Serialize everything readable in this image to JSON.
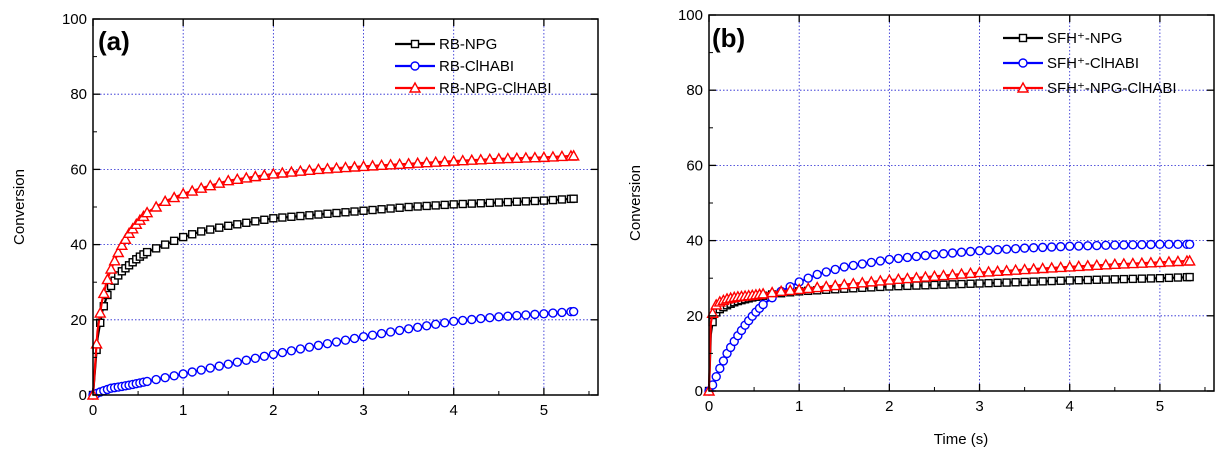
{
  "chart_data": [
    {
      "type": "line",
      "panel_label": "(a)",
      "xlabel": "",
      "ylabel": "Conversion",
      "xlim": [
        0,
        5.6
      ],
      "ylim": [
        0,
        100
      ],
      "xticks": [
        0,
        1,
        2,
        3,
        4,
        5
      ],
      "yticks": [
        0,
        20,
        40,
        60,
        80,
        100
      ],
      "grid": true,
      "legend_position": "top-right",
      "series": [
        {
          "name": "RB-NPG",
          "color": "#000000",
          "marker": "square",
          "x": [
            0.0,
            0.05,
            0.1,
            0.15,
            0.2,
            0.3,
            0.4,
            0.5,
            0.6,
            0.8,
            1.0,
            1.2,
            1.5,
            2.0,
            2.5,
            3.0,
            3.5,
            4.0,
            4.5,
            5.0,
            5.33
          ],
          "y": [
            0,
            15,
            22,
            26,
            29,
            32.5,
            34.5,
            36.5,
            38,
            40,
            42,
            43.5,
            45,
            47,
            48,
            49,
            50,
            50.7,
            51.2,
            51.7,
            52.2
          ]
        },
        {
          "name": "RB-ClHABI",
          "color": "#0000ff",
          "marker": "circle",
          "x": [
            0.0,
            0.1,
            0.2,
            0.3,
            0.4,
            0.5,
            0.6,
            0.8,
            1.0,
            1.5,
            2.0,
            2.5,
            3.0,
            3.5,
            4.0,
            4.5,
            5.0,
            5.33
          ],
          "y": [
            0,
            1,
            1.8,
            2.2,
            2.6,
            3.1,
            3.6,
            4.6,
            5.6,
            8.2,
            10.8,
            13.2,
            15.5,
            17.6,
            19.6,
            20.8,
            21.6,
            22.2
          ]
        },
        {
          "name": "RB-NPG-ClHABI",
          "color": "#ff0000",
          "marker": "triangle",
          "x": [
            0.0,
            0.05,
            0.1,
            0.15,
            0.2,
            0.3,
            0.4,
            0.5,
            0.6,
            0.8,
            1.0,
            1.2,
            1.5,
            2.0,
            2.5,
            3.0,
            3.5,
            4.0,
            4.5,
            5.0,
            5.33
          ],
          "y": [
            0,
            17,
            25,
            30,
            33.5,
            39,
            43,
            46,
            48.5,
            51.5,
            53.5,
            55,
            57,
            58.8,
            60,
            60.8,
            61.5,
            62.2,
            62.8,
            63.2,
            63.6
          ]
        }
      ]
    },
    {
      "type": "line",
      "panel_label": "(b)",
      "xlabel": "Time (s)",
      "ylabel": "Conversion",
      "xlim": [
        0,
        5.6
      ],
      "ylim": [
        0,
        100
      ],
      "xticks": [
        0,
        1,
        2,
        3,
        4,
        5
      ],
      "yticks": [
        0,
        20,
        40,
        60,
        80,
        100
      ],
      "grid": true,
      "legend_position": "top-right",
      "series": [
        {
          "name": "SFH⁺-NPG",
          "color": "#000000",
          "marker": "square",
          "x": [
            0.0,
            0.02,
            0.05,
            0.1,
            0.2,
            0.3,
            0.5,
            0.8,
            1.0,
            1.5,
            2.0,
            2.5,
            3.0,
            3.5,
            4.0,
            4.5,
            5.0,
            5.33
          ],
          "y": [
            0,
            15,
            20,
            21.5,
            22.8,
            23.8,
            25,
            26,
            26.5,
            27.2,
            27.8,
            28.2,
            28.6,
            29.0,
            29.4,
            29.7,
            30.0,
            30.3
          ]
        },
        {
          "name": "SFH⁺-ClHABI",
          "color": "#0000ff",
          "marker": "circle",
          "x": [
            0.0,
            0.05,
            0.1,
            0.2,
            0.3,
            0.4,
            0.5,
            0.6,
            0.7,
            0.8,
            1.0,
            1.2,
            1.5,
            2.0,
            2.5,
            3.0,
            3.5,
            4.0,
            4.5,
            5.0,
            5.33
          ],
          "y": [
            0,
            2,
            5,
            10,
            14,
            17.5,
            20.5,
            23,
            24.8,
            26.5,
            29,
            31,
            33,
            35,
            36.3,
            37.3,
            38,
            38.5,
            38.8,
            39,
            39
          ]
        },
        {
          "name": "SFH⁺-NPG-ClHABI",
          "color": "#ff0000",
          "marker": "triangle",
          "x": [
            0.0,
            0.02,
            0.05,
            0.1,
            0.2,
            0.3,
            0.5,
            0.8,
            1.0,
            1.5,
            2.0,
            2.5,
            3.0,
            3.5,
            4.0,
            4.5,
            5.0,
            5.33
          ],
          "y": [
            0,
            18,
            22,
            23.5,
            24.5,
            25,
            25.5,
            26.5,
            27,
            28.3,
            29.5,
            30.5,
            31.5,
            32.3,
            33,
            33.7,
            34.2,
            34.6
          ]
        }
      ]
    }
  ]
}
